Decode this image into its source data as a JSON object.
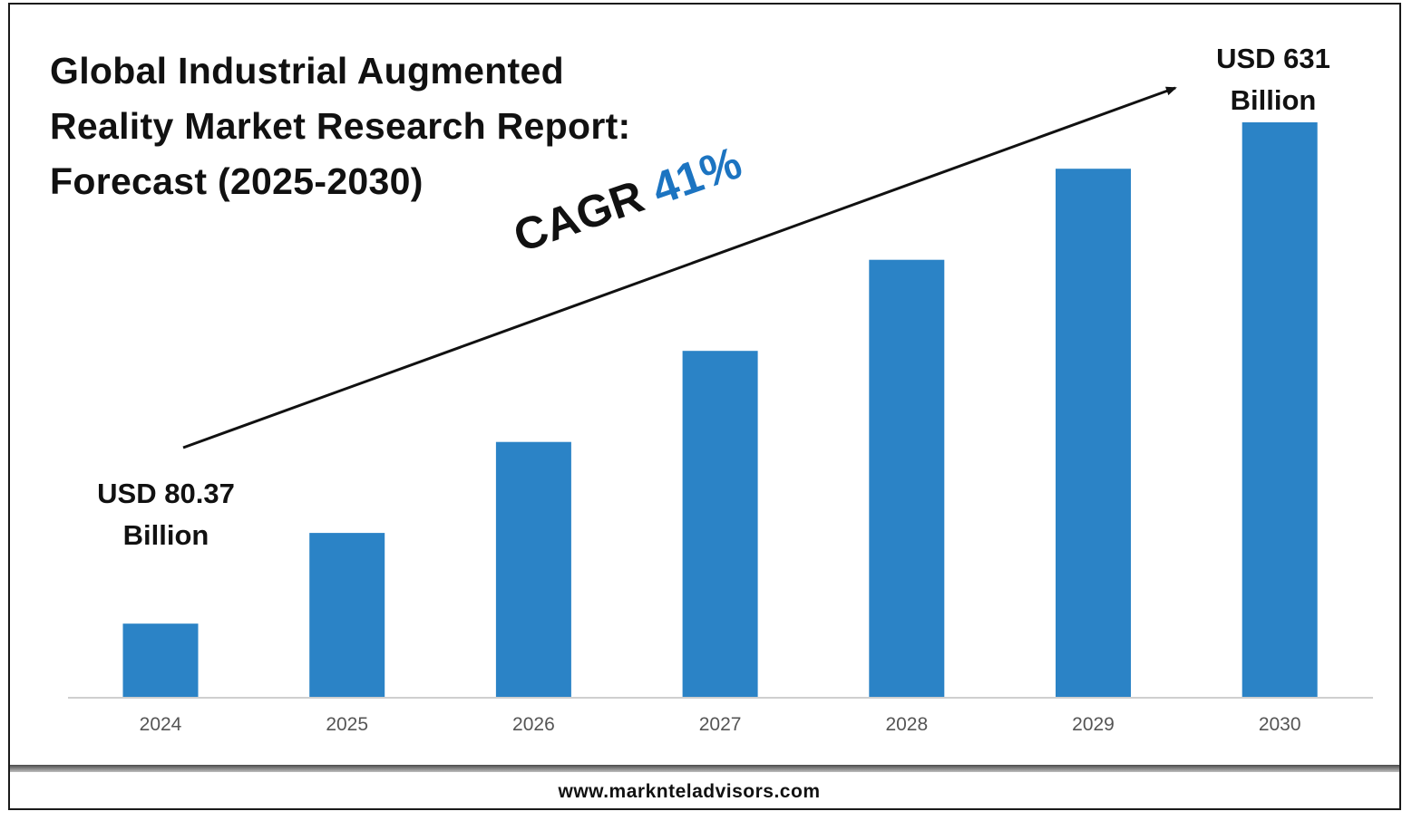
{
  "chart_data": {
    "type": "bar",
    "title": "Global Industrial Augmented Reality Market Research Report: Forecast (2025-2030)",
    "categories": [
      "2024",
      "2025",
      "2026",
      "2027",
      "2028",
      "2029",
      "2030"
    ],
    "values": [
      80.37,
      180,
      280,
      380,
      480,
      580,
      631
    ],
    "unit": "USD Billion",
    "bar_color": "#2b83c6",
    "annotations": {
      "start_label": "USD 80.37 Billion",
      "end_label": "USD 631 Billion",
      "cagr_prefix": "CAGR",
      "cagr_value": "41%",
      "cagr_color": "#1c74c1"
    }
  },
  "footer": {
    "url": "www.marknteladvisors.com"
  }
}
